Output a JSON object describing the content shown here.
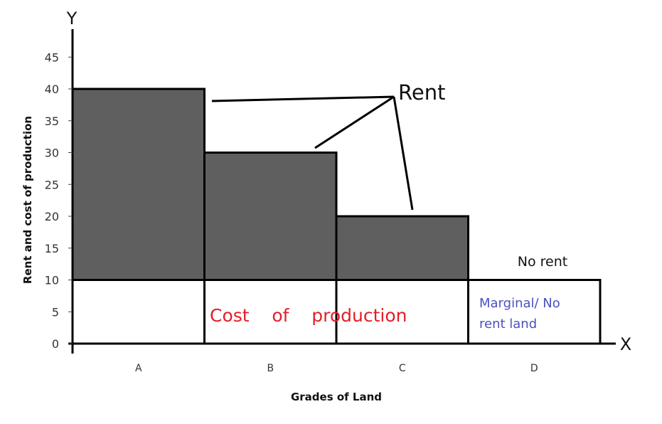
{
  "chart_data": {
    "type": "bar",
    "title": "",
    "xlabel": "Grades of Land",
    "ylabel": "Rent and cost of production",
    "x_axis_letter": "X",
    "y_axis_letter": "Y",
    "categories": [
      "A",
      "B",
      "C",
      "D"
    ],
    "series": [
      {
        "name": "Cost of production",
        "values": [
          10,
          10,
          10,
          10
        ],
        "color": "#ffffff"
      },
      {
        "name": "Rent",
        "values": [
          30,
          20,
          10,
          0
        ],
        "color": "#5f5f5f"
      }
    ],
    "totals": [
      40,
      30,
      20,
      10
    ],
    "yticks": [
      0,
      5,
      10,
      15,
      20,
      25,
      30,
      35,
      40,
      45
    ],
    "ylim": [
      0,
      45
    ],
    "grid": false,
    "legend": "none",
    "annotations": [
      {
        "text": "Rent",
        "points_to": [
          "A",
          "B",
          "C"
        ]
      },
      {
        "text": "No rent",
        "over": "D"
      },
      {
        "text": "Cost of production",
        "color": "#e0202a",
        "region": "base of bars"
      },
      {
        "text": "Marginal/ No rent land",
        "color": "#4a52c0",
        "in": "D"
      }
    ]
  },
  "labels": {
    "rent": "Rent",
    "no_rent": "No rent",
    "cost": "Cost    of    production",
    "marginal_line1": "Marginal/ No",
    "marginal_line2": "rent land"
  },
  "colors": {
    "rent_fill": "#5f5f5f",
    "cost_text": "#e0202a",
    "marginal_text": "#4a52c0",
    "axis": "#000000"
  }
}
